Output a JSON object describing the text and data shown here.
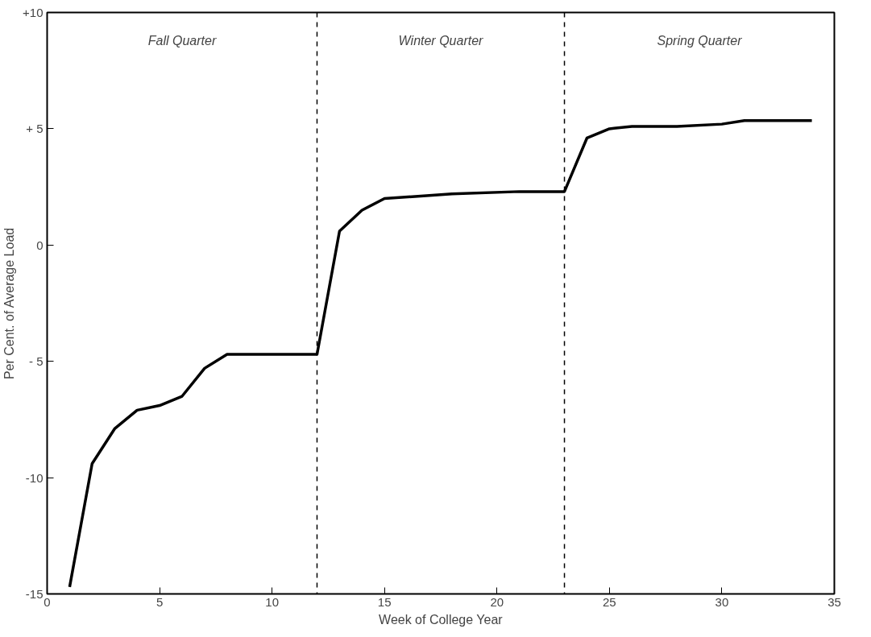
{
  "chart_data": {
    "type": "line",
    "xlabel": "Week of College Year",
    "ylabel": "Per Cent. of Average Load",
    "x": [
      1,
      2,
      3,
      4,
      5,
      6,
      7,
      8,
      12,
      13,
      14,
      15,
      18,
      21,
      23,
      24,
      25,
      26,
      28,
      30,
      31,
      34
    ],
    "series": [
      {
        "color": "#000000",
        "values": [
          -14.7,
          -9.4,
          -7.9,
          -7.1,
          -6.9,
          -6.5,
          -5.3,
          -4.7,
          -4.7,
          0.6,
          1.5,
          2.0,
          2.2,
          2.3,
          2.3,
          4.6,
          5.0,
          5.1,
          5.1,
          5.2,
          5.35,
          5.35
        ]
      }
    ],
    "xlim": [
      0,
      35
    ],
    "ylim": [
      -15,
      10
    ],
    "xticks": [
      0,
      5,
      10,
      15,
      20,
      25,
      30,
      35
    ],
    "yticks": [
      {
        "value": 10,
        "label": "+10"
      },
      {
        "value": 5,
        "label": "+ 5"
      },
      0,
      {
        "value": -5,
        "label": "- 5"
      },
      -10,
      -15
    ],
    "ref_lines": [
      {
        "axis": "x",
        "value": 12,
        "line_style": "dashed",
        "color": "#000000"
      },
      {
        "axis": "x",
        "value": 23,
        "line_style": "dashed",
        "color": "#000000"
      }
    ],
    "annotations": [
      "Fall Quarter",
      "Winter Quarter",
      "Spring Quarter"
    ],
    "grid": false,
    "marker": "none",
    "line_style": "solid"
  }
}
